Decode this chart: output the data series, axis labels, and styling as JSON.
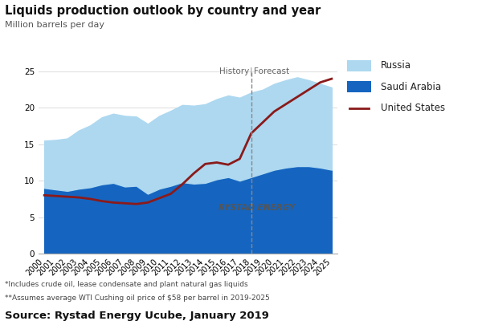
{
  "years": [
    2000,
    2001,
    2002,
    2003,
    2004,
    2005,
    2006,
    2007,
    2008,
    2009,
    2010,
    2011,
    2012,
    2013,
    2014,
    2015,
    2016,
    2017,
    2018,
    2019,
    2020,
    2021,
    2022,
    2023,
    2024,
    2025
  ],
  "saudi_arabia": [
    9.0,
    8.8,
    8.6,
    8.9,
    9.1,
    9.5,
    9.7,
    9.2,
    9.3,
    8.2,
    8.9,
    9.3,
    9.8,
    9.6,
    9.7,
    10.2,
    10.5,
    10.0,
    10.5,
    11.0,
    11.5,
    11.8,
    12.0,
    12.0,
    11.8,
    11.5
  ],
  "russia": [
    6.5,
    6.8,
    7.2,
    8.0,
    8.5,
    9.2,
    9.5,
    9.7,
    9.5,
    9.6,
    10.0,
    10.3,
    10.6,
    10.7,
    10.8,
    11.0,
    11.2,
    11.4,
    11.6,
    11.5,
    11.8,
    12.0,
    12.2,
    11.8,
    11.5,
    11.3
  ],
  "usa": [
    8.0,
    7.9,
    7.8,
    7.7,
    7.5,
    7.2,
    7.0,
    6.9,
    6.8,
    7.0,
    7.6,
    8.2,
    9.5,
    11.0,
    12.3,
    12.5,
    12.2,
    13.0,
    16.5,
    18.0,
    19.5,
    20.5,
    21.5,
    22.5,
    23.5,
    24.0
  ],
  "history_year": 2018,
  "title": "Liquids production outlook by country and year",
  "subtitle": "Million barrels per day",
  "ylim": [
    0,
    25
  ],
  "yticks": [
    0,
    5,
    10,
    15,
    20,
    25
  ],
  "color_russia": "#add8f0",
  "color_saudi": "#1565c0",
  "color_usa": "#8b1a1a",
  "footnote1": "*Includes crude oil, lease condensate and plant natural gas liquids",
  "footnote2": "**Assumes average WTI Cushing oil price of $58 per barrel in 2019-2025",
  "source": "Source: Rystad Energy Ucube, January 2019",
  "bg_color": "#ffffff",
  "plot_bg_color": "#ffffff",
  "grid_color": "#e0e0e0"
}
